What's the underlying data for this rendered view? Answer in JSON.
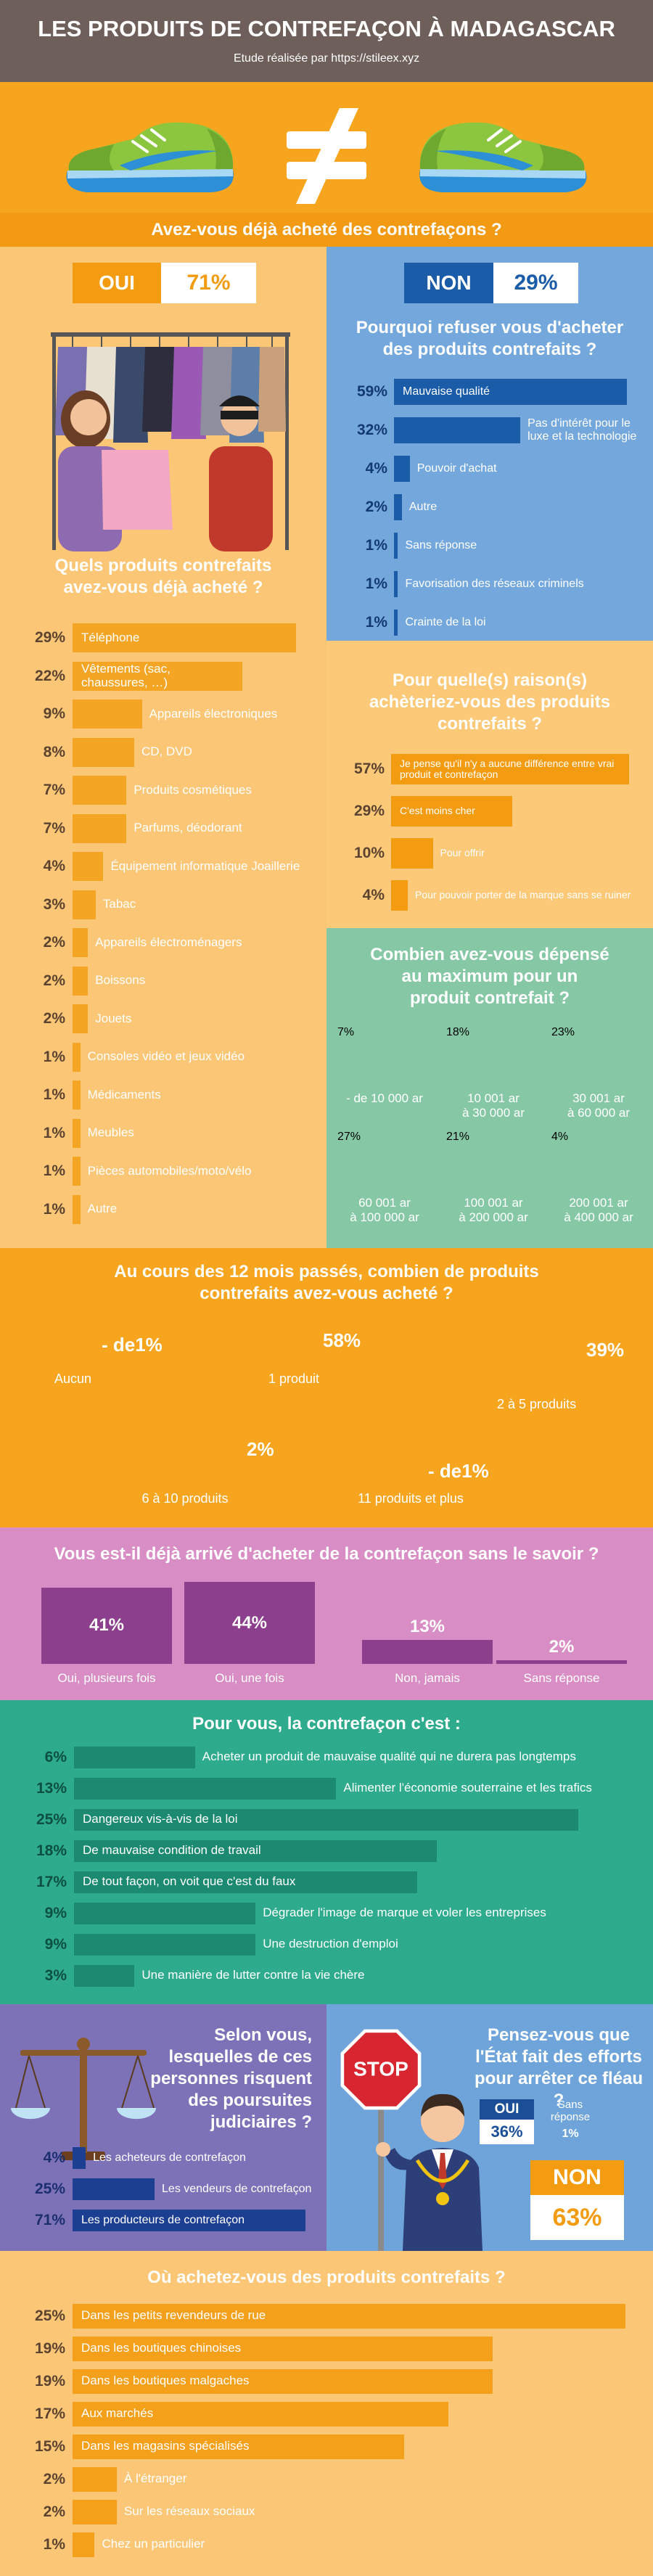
{
  "header": {
    "title": "LES PRODUITS DE CONTREFAÇON À MADAGASCAR",
    "subtitle": "Etude réalisée par https://stileex.xyz"
  },
  "bought": {
    "question": "Avez-vous déjà acheté des contrefaçons ?",
    "yes": {
      "label": "OUI",
      "value": "71%"
    },
    "no": {
      "label": "NON",
      "value": "29%"
    }
  },
  "products": {
    "question": "Quels produits contrefaits avez-vous déjà acheté ?",
    "items": [
      {
        "label": "Téléphone",
        "value": 29,
        "value_label": "29%"
      },
      {
        "label": "Vêtements (sac, chaussures, …)",
        "value": 22,
        "value_label": "22%"
      },
      {
        "label": "Appareils électroniques",
        "value": 9,
        "value_label": "9%"
      },
      {
        "label": "CD, DVD",
        "value": 8,
        "value_label": "8%"
      },
      {
        "label": "Produits cosmétiques",
        "value": 7,
        "value_label": "7%"
      },
      {
        "label": "Parfums, déodorant",
        "value": 7,
        "value_label": "7%"
      },
      {
        "label": "Équipement informatique Joaillerie",
        "value": 4,
        "value_label": "4%"
      },
      {
        "label": "Tabac",
        "value": 3,
        "value_label": "3%"
      },
      {
        "label": "Appareils électroménagers",
        "value": 2,
        "value_label": "2%"
      },
      {
        "label": "Boissons",
        "value": 2,
        "value_label": "2%"
      },
      {
        "label": "Jouets",
        "value": 2,
        "value_label": "2%"
      },
      {
        "label": "Consoles vidéo et jeux vidéo",
        "value": 1,
        "value_label": "1%"
      },
      {
        "label": "Médicaments",
        "value": 1,
        "value_label": "1%"
      },
      {
        "label": "Meubles",
        "value": 1,
        "value_label": "1%"
      },
      {
        "label": "Pièces automobiles/moto/vélo",
        "value": 1,
        "value_label": "1%"
      },
      {
        "label": "Autre",
        "value": 1,
        "value_label": "1%"
      }
    ]
  },
  "refusal": {
    "question": "Pourquoi refuser vous d'acheter des produits contrefaits ?",
    "items": [
      {
        "label": "Mauvaise qualité",
        "value": 59,
        "value_label": "59%"
      },
      {
        "label": "Pas d'intérêt pour le luxe et la technologie",
        "value": 32,
        "value_label": "32%"
      },
      {
        "label": "Pouvoir d'achat",
        "value": 4,
        "value_label": "4%"
      },
      {
        "label": "Autre",
        "value": 2,
        "value_label": "2%"
      },
      {
        "label": "Sans réponse",
        "value": 1,
        "value_label": "1%"
      },
      {
        "label": "Favorisation des réseaux criminels",
        "value": 1,
        "value_label": "1%"
      },
      {
        "label": "Crainte de la loi",
        "value": 1,
        "value_label": "1%"
      }
    ]
  },
  "reasons": {
    "question": "Pour quelle(s) raison(s) achèteriez-vous des produits contrefaits ?",
    "items": [
      {
        "label": "Je pense qu'il n'y a aucune différence entre vrai produit et contrefaçon",
        "value": 57,
        "value_label": "57%"
      },
      {
        "label": "C'est moins cher",
        "value": 29,
        "value_label": "29%"
      },
      {
        "label": "Pour offrir",
        "value": 10,
        "value_label": "10%"
      },
      {
        "label": "Pour pouvoir porter de la marque sans se ruiner",
        "value": 4,
        "value_label": "4%"
      }
    ]
  },
  "spending": {
    "question": "Combien avez-vous dépensé au maximum pour un produit contrefait ?",
    "items": [
      {
        "value": "7%",
        "label": "- de 10 000 ar"
      },
      {
        "value": "18%",
        "label": "10 001 ar\nà 30 000 ar"
      },
      {
        "value": "23%",
        "label": "30 001 ar\nà 60 000 ar"
      },
      {
        "value": "27%",
        "label": "60 001 ar\nà 100 000 ar"
      },
      {
        "value": "21%",
        "label": "100 001 ar\nà 200 000 ar"
      },
      {
        "value": "4%",
        "label": "200 001 ar\nà 400 000 ar"
      }
    ]
  },
  "quantity": {
    "question": "Au cours des 12 mois passés, combien de produits contrefaits avez-vous acheté ?",
    "items": [
      {
        "label": "Aucun",
        "value": "- de1%"
      },
      {
        "label": "1 produit",
        "value": "58%"
      },
      {
        "label": "2 à 5 produits",
        "value": "39%"
      },
      {
        "label": "6 à 10 produits",
        "value": "2%"
      },
      {
        "label": "11 produits et plus",
        "value": "- de1%"
      }
    ]
  },
  "unaware": {
    "question": "Vous est-il déjà arrivé d'acheter de la contrefaçon sans le savoir ?",
    "items": [
      {
        "label": "Oui, plusieurs fois",
        "value": 41,
        "value_label": "41%"
      },
      {
        "label": "Oui, une fois",
        "value": 44,
        "value_label": "44%"
      },
      {
        "label": "Non, jamais",
        "value": 13,
        "value_label": "13%"
      },
      {
        "label": "Sans réponse",
        "value": 2,
        "value_label": "2%"
      }
    ]
  },
  "meaning": {
    "question": "Pour vous, la contrefaçon c'est :",
    "items": [
      {
        "label": "Acheter un produit de mauvaise qualité qui ne durera pas longtemps",
        "value": 6,
        "value_label": "6%"
      },
      {
        "label": "Alimenter l'économie souterraine et les trafics",
        "value": 13,
        "value_label": "13%"
      },
      {
        "label": "Dangereux vis-à-vis de la loi",
        "value": 25,
        "value_label": "25%"
      },
      {
        "label": "De mauvaise condition de travail",
        "value": 18,
        "value_label": "18%"
      },
      {
        "label": "De tout façon, on voit que c'est du faux",
        "value": 17,
        "value_label": "17%"
      },
      {
        "label": "Dégrader l'image de marque et voler les entreprises",
        "value": 9,
        "value_label": "9%"
      },
      {
        "label": "Une destruction d'emploi",
        "value": 9,
        "value_label": "9%"
      },
      {
        "label": "Une manière de lutter contre la vie chère",
        "value": 3,
        "value_label": "3%"
      }
    ]
  },
  "justice": {
    "question": "Selon vous, lesquelles de ces personnes risquent des poursuites judiciaires ?",
    "items": [
      {
        "label": "Les acheteurs de contrefaçon",
        "value": 4,
        "value_label": "4%"
      },
      {
        "label": "Les vendeurs de contrefaçon",
        "value": 25,
        "value_label": "25%"
      },
      {
        "label": "Les producteurs de contrefaçon",
        "value": 71,
        "value_label": "71%"
      }
    ]
  },
  "state": {
    "question": "Pensez-vous que l'État fait des efforts pour arrêter ce fléau ?",
    "sign": "STOP",
    "yes": {
      "label": "OUI",
      "value": "36%"
    },
    "no_answer": {
      "label": "Sans réponse",
      "value": "1%"
    },
    "no": {
      "label": "NON",
      "value": "63%"
    }
  },
  "where": {
    "question": "Où achetez-vous des produits contrefaits ?",
    "items": [
      {
        "label": "Dans les petits revendeurs de rue",
        "value": 25,
        "value_label": "25%"
      },
      {
        "label": "Dans les boutiques chinoises",
        "value": 19,
        "value_label": "19%"
      },
      {
        "label": "Dans les boutiques malgaches",
        "value": 19,
        "value_label": "19%"
      },
      {
        "label": "Aux marchés",
        "value": 17,
        "value_label": "17%"
      },
      {
        "label": "Dans les magasins spécialisés",
        "value": 15,
        "value_label": "15%"
      },
      {
        "label": "À l'étranger",
        "value": 2,
        "value_label": "2%"
      },
      {
        "label": "Sur les réseaux sociaux",
        "value": 2,
        "value_label": "2%"
      },
      {
        "label": "Chez un particulier",
        "value": 1,
        "value_label": "1%"
      }
    ]
  }
}
